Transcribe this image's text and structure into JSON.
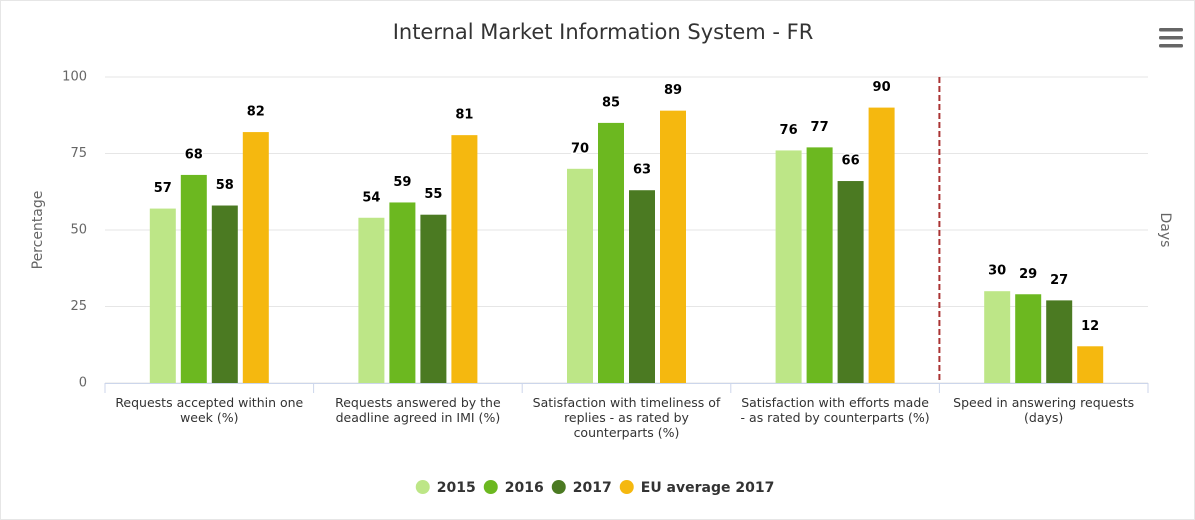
{
  "chart_data": {
    "type": "bar",
    "title": "Internal Market Information System - FR",
    "y_axis_title": "Percentage",
    "y2_axis_title": "Days",
    "categories": [
      "Requests accepted within one week (%)",
      "Requests answered by the deadline agreed in IMI (%)",
      "Satisfaction with timeliness of replies - as rated by counterparts (%)",
      "Satisfaction with efforts made - as rated by counterparts (%)",
      "Speed in answering requests (days)"
    ],
    "series": [
      {
        "name": "2015",
        "color": "#bde687",
        "values": [
          57,
          54,
          70,
          76,
          30
        ]
      },
      {
        "name": "2016",
        "color": "#6cb820",
        "values": [
          68,
          59,
          85,
          77,
          29
        ]
      },
      {
        "name": "2017",
        "color": "#4b7a22",
        "values": [
          58,
          55,
          63,
          66,
          27
        ]
      },
      {
        "name": "EU average 2017",
        "color": "#f5b80f",
        "values": [
          82,
          81,
          89,
          90,
          12
        ]
      }
    ],
    "ylim": [
      0,
      100
    ],
    "yticks": [
      0,
      25,
      50,
      75,
      100
    ],
    "grid": true
  }
}
